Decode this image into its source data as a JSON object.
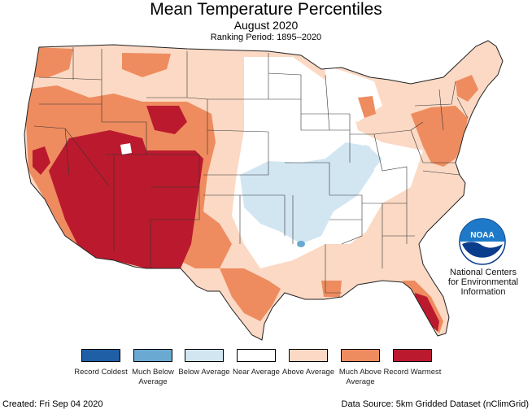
{
  "header": {
    "title": "Mean Temperature Percentiles",
    "subtitle": "August 2020",
    "ranking_period": "Ranking Period: 1895–2020"
  },
  "legend": [
    {
      "label": "Record Coldest",
      "color": "#1f5fa6"
    },
    {
      "label": "Much Below Average",
      "color": "#6aaad2"
    },
    {
      "label": "Below Average",
      "color": "#d2e6f2"
    },
    {
      "label": "Near Average",
      "color": "#ffffff"
    },
    {
      "label": "Above Average",
      "color": "#fbd9c4"
    },
    {
      "label": "Much Above Average",
      "color": "#ee8c5f"
    },
    {
      "label": "Record Warmest",
      "color": "#bb1a2e"
    }
  ],
  "logo": {
    "text": "NOAA",
    "org_name": "National Centers for Environmental Information",
    "icon": "noaa-logo-icon"
  },
  "footer": {
    "created": "Created: Fri Sep 04 2020",
    "source": "Data Source: 5km Gridded Dataset (nClimGrid)"
  }
}
